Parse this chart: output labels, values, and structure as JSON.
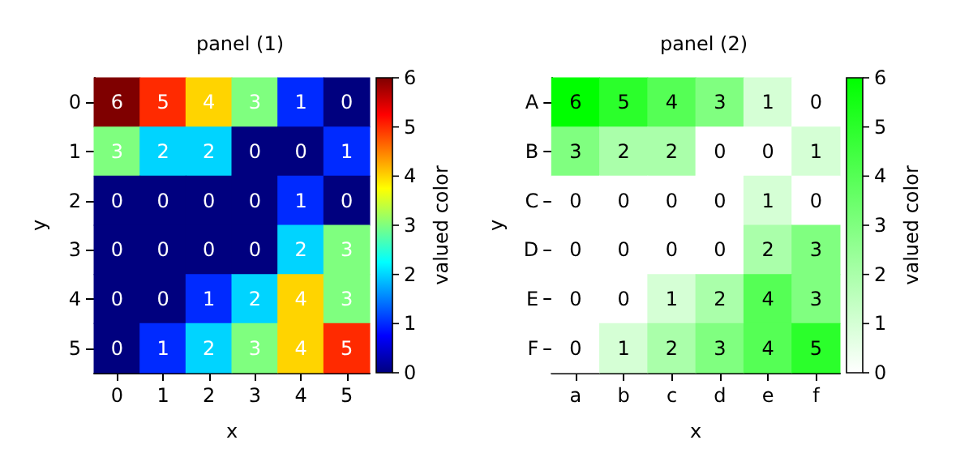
{
  "chart_data": [
    {
      "type": "heatmap",
      "title": "panel (1)",
      "xlabel": "x",
      "ylabel": "y",
      "clabel": "valued color",
      "categories": [
        "0",
        "1",
        "2",
        "3",
        "4",
        "5"
      ],
      "y_categories": [
        "0",
        "1",
        "2",
        "3",
        "4",
        "5"
      ],
      "cells": [
        [
          6,
          5,
          4,
          3,
          1,
          0
        ],
        [
          3,
          2,
          2,
          0,
          0,
          1
        ],
        [
          0,
          0,
          0,
          0,
          1,
          0
        ],
        [
          0,
          0,
          0,
          0,
          2,
          3
        ],
        [
          0,
          0,
          1,
          2,
          4,
          3
        ],
        [
          0,
          1,
          2,
          3,
          4,
          5
        ]
      ],
      "clim": [
        0,
        6
      ],
      "cticks": [
        0,
        1,
        2,
        3,
        4,
        5,
        6
      ],
      "data_labels": true
    },
    {
      "type": "heatmap",
      "title": "panel (2)",
      "xlabel": "x",
      "ylabel": "y",
      "clabel": "valued color",
      "categories": [
        "a",
        "b",
        "c",
        "d",
        "e",
        "f"
      ],
      "y_categories": [
        "A",
        "B",
        "C",
        "D",
        "E",
        "F"
      ],
      "cells": [
        [
          6,
          5,
          4,
          3,
          1,
          0
        ],
        [
          3,
          2,
          2,
          0,
          0,
          1
        ],
        [
          0,
          0,
          0,
          0,
          1,
          0
        ],
        [
          0,
          0,
          0,
          0,
          2,
          3
        ],
        [
          0,
          0,
          1,
          2,
          4,
          3
        ],
        [
          0,
          1,
          2,
          3,
          4,
          5
        ]
      ],
      "clim": [
        0,
        6
      ],
      "cticks": [
        0,
        1,
        2,
        3,
        4,
        5,
        6
      ],
      "data_labels": true
    }
  ]
}
